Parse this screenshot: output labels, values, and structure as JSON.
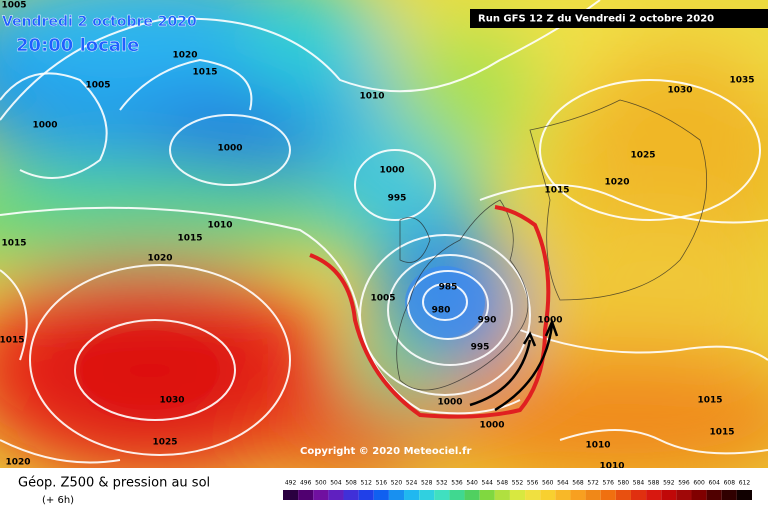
{
  "header": {
    "date": "Vendredi 2 octobre 2020",
    "time": "20:00 locale",
    "run": "Run GFS 12 Z du Vendredi 2 octobre 2020"
  },
  "isobar_labels": [
    "1005",
    "1020",
    "1015",
    "1005",
    "1000",
    "1000",
    "1010",
    "1000",
    "995",
    "1015",
    "1020",
    "1025",
    "1030",
    "1035",
    "1010",
    "1015",
    "1020",
    "1015",
    "1015",
    "1005",
    "985",
    "980",
    "990",
    "995",
    "1000",
    "1030",
    "1000",
    "1025",
    "1000",
    "1015",
    "1015",
    "1010",
    "1010",
    "1020"
  ],
  "copyright": "Copyright © 2020 Meteociel.fr",
  "footer": {
    "title": "Géop. Z500 & pression au sol",
    "subtitle": "(+ 6h)"
  },
  "scale": [
    492,
    496,
    500,
    504,
    508,
    512,
    516,
    520,
    524,
    528,
    532,
    536,
    540,
    544,
    548,
    552,
    556,
    560,
    564,
    568,
    572,
    576,
    580,
    584,
    588,
    592,
    596,
    600,
    604,
    608,
    612
  ]
}
